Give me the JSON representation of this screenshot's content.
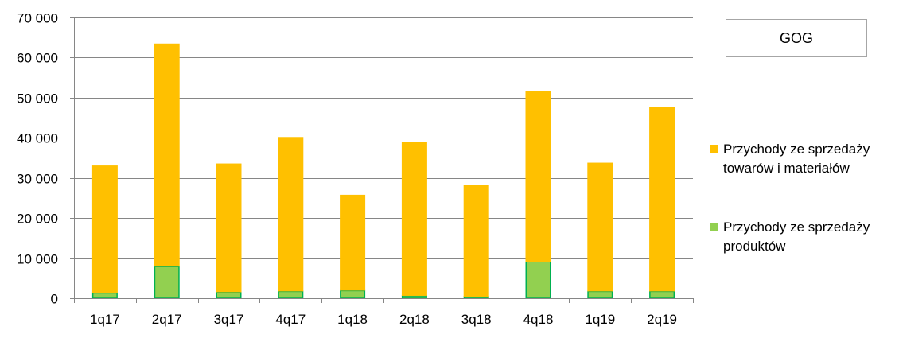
{
  "chart_data": {
    "type": "bar",
    "stacked": true,
    "title": "GOG",
    "categories": [
      "1q17",
      "2q17",
      "3q17",
      "4q17",
      "1q18",
      "2q18",
      "3q18",
      "4q18",
      "1q19",
      "2q19"
    ],
    "series": [
      {
        "name": "Przychody ze sprzedaży produktów",
        "color": "#92d050",
        "border_color": "#00b050",
        "values": [
          1300,
          7900,
          1500,
          1700,
          1900,
          600,
          400,
          9100,
          1700,
          1700
        ]
      },
      {
        "name": "Przychody ze sprzedaży towarów i materiałów",
        "color": "#ffc000",
        "values": [
          31800,
          55600,
          32100,
          38500,
          23900,
          38400,
          27800,
          42600,
          32100,
          45900
        ]
      }
    ],
    "ylim": [
      0,
      70000
    ],
    "yticks": [
      0,
      10000,
      20000,
      30000,
      40000,
      50000,
      60000,
      70000
    ],
    "ytick_labels": [
      "0",
      "10 000",
      "20 000",
      "30 000",
      "40 000",
      "50 000",
      "60 000",
      "70 000"
    ],
    "grid": true,
    "legend_position": "right",
    "xlabel": "",
    "ylabel": ""
  },
  "legend": {
    "item_towary": "Przychody ze sprzedaży towarów i materiałów",
    "item_produkty": "Przychody ze sprzedaży produktów"
  }
}
